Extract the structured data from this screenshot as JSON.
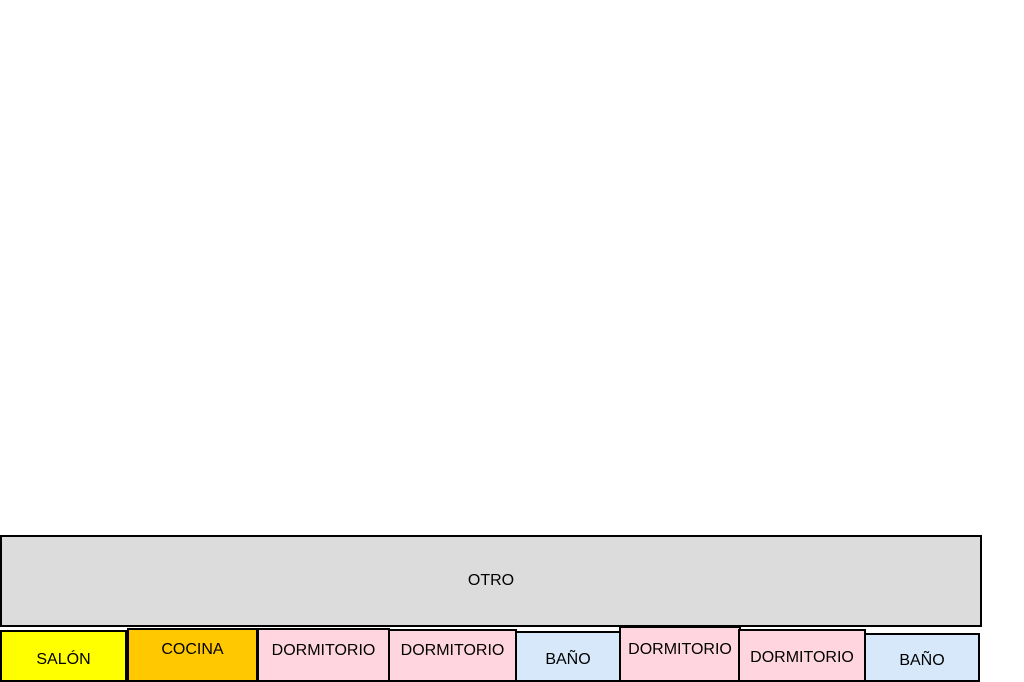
{
  "top_room": {
    "label": "OTRO"
  },
  "rooms": [
    {
      "label": "SALÓN"
    },
    {
      "label": "COCINA"
    },
    {
      "label": "DORMITORIO"
    },
    {
      "label": "DORMITORIO"
    },
    {
      "label": "BAÑO"
    },
    {
      "label": "DORMITORIO"
    },
    {
      "label": "DORMITORIO"
    },
    {
      "label": "BAÑO"
    }
  ]
}
